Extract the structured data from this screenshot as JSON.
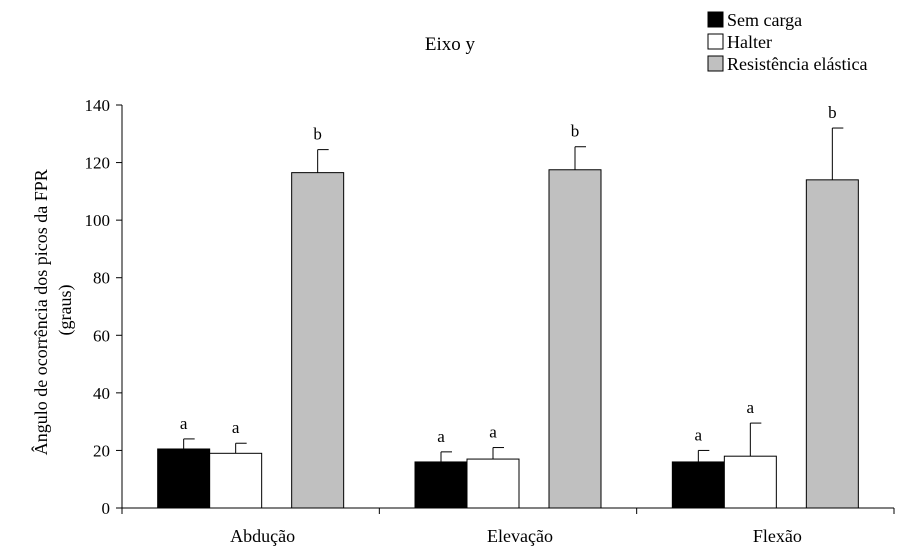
{
  "chart_data": {
    "type": "bar",
    "title": "Eixo y",
    "xlabel": "",
    "ylabel_lines": [
      "Ângulo de ocorrência dos picos da FPR",
      "(graus)"
    ],
    "ylim": [
      0,
      140
    ],
    "yticks": [
      0,
      20,
      40,
      60,
      80,
      100,
      120,
      140
    ],
    "categories": [
      "Abdução",
      "Elevação",
      "Flexão"
    ],
    "legend_position": "top-right",
    "grid": false,
    "series": [
      {
        "name": "Sem carga",
        "color": "#000000",
        "values": [
          20.5,
          16,
          16
        ],
        "errors": [
          3.5,
          3.5,
          4
        ],
        "labels": [
          "a",
          "a",
          "a"
        ]
      },
      {
        "name": "Halter",
        "color": "#ffffff",
        "values": [
          19,
          17,
          18
        ],
        "errors": [
          3.5,
          4,
          11.5
        ],
        "labels": [
          "a",
          "a",
          "a"
        ]
      },
      {
        "name": "Resistência elástica",
        "color": "#c0c0c0",
        "values": [
          116.5,
          117.5,
          114
        ],
        "errors": [
          8,
          8,
          18
        ],
        "labels": [
          "b",
          "b",
          "b"
        ]
      }
    ]
  }
}
